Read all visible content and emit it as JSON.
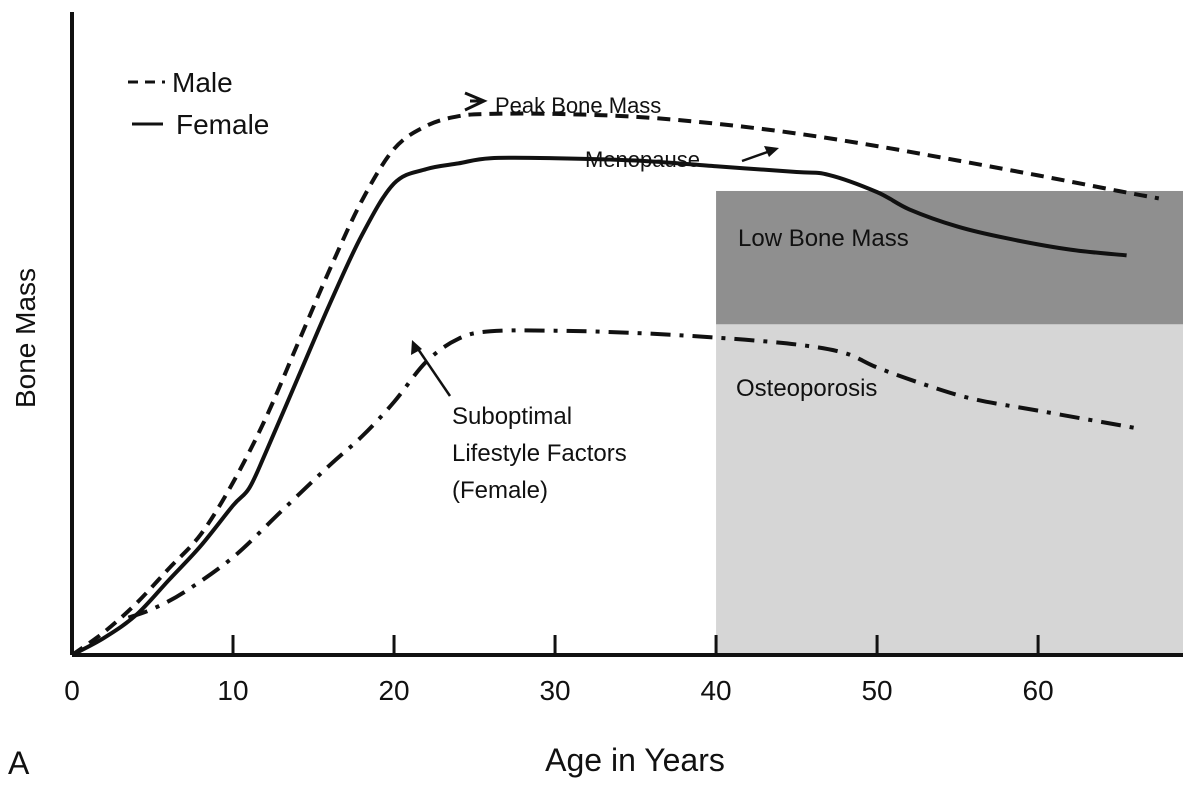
{
  "panel_label": "A",
  "chart_data": {
    "type": "line",
    "title": "",
    "xlabel": "Age in Years",
    "ylabel": "Bone Mass",
    "xlim": [
      0,
      69
    ],
    "ylim": [
      0,
      100
    ],
    "x_ticks": [
      0,
      10,
      20,
      30,
      40,
      50,
      60
    ],
    "y_ticks": [],
    "grid": false,
    "legend_position": "top-left",
    "series": [
      {
        "name": "Male",
        "style": "dashed",
        "color": "#111111",
        "points": [
          [
            0,
            0
          ],
          [
            2,
            4
          ],
          [
            4,
            9
          ],
          [
            6,
            15
          ],
          [
            8,
            21
          ],
          [
            10,
            30
          ],
          [
            12,
            41
          ],
          [
            14,
            54
          ],
          [
            16,
            67
          ],
          [
            18,
            79
          ],
          [
            20,
            88
          ],
          [
            22,
            92
          ],
          [
            24,
            93.7
          ],
          [
            26,
            94.1
          ],
          [
            30,
            94.1
          ],
          [
            35,
            93.6
          ],
          [
            40,
            92.4
          ],
          [
            45,
            90.7
          ],
          [
            50,
            88.5
          ],
          [
            55,
            86
          ],
          [
            60,
            83.4
          ],
          [
            65,
            80.7
          ],
          [
            67.5,
            79.4
          ]
        ]
      },
      {
        "name": "Female",
        "style": "solid",
        "color": "#111111",
        "points": [
          [
            0,
            0
          ],
          [
            2,
            3
          ],
          [
            4,
            7
          ],
          [
            6,
            13
          ],
          [
            8,
            19
          ],
          [
            10,
            26
          ],
          [
            11,
            29
          ],
          [
            12,
            35
          ],
          [
            14,
            48
          ],
          [
            16,
            61
          ],
          [
            18,
            73
          ],
          [
            20,
            82
          ],
          [
            22,
            84.5
          ],
          [
            24,
            85.5
          ],
          [
            26,
            86.4
          ],
          [
            30,
            86.4
          ],
          [
            35,
            86
          ],
          [
            40,
            85
          ],
          [
            45,
            84
          ],
          [
            47,
            83.5
          ],
          [
            50,
            80.5
          ],
          [
            52,
            77.5
          ],
          [
            55,
            74.5
          ],
          [
            58,
            72.5
          ],
          [
            62,
            70.5
          ],
          [
            65.5,
            69.5
          ]
        ]
      },
      {
        "name": "Suboptimal Lifestyle Factors (Female)",
        "style": "dashdot",
        "color": "#111111",
        "points": [
          [
            3.5,
            6.5
          ],
          [
            5,
            8
          ],
          [
            7,
            11
          ],
          [
            10,
            17
          ],
          [
            13,
            25
          ],
          [
            16,
            33
          ],
          [
            18,
            38
          ],
          [
            20,
            44
          ],
          [
            22,
            51
          ],
          [
            24,
            55
          ],
          [
            26,
            56.3
          ],
          [
            30,
            56.4
          ],
          [
            35,
            56
          ],
          [
            40,
            55.2
          ],
          [
            45,
            54
          ],
          [
            48,
            52.5
          ],
          [
            50,
            50
          ],
          [
            53,
            47
          ],
          [
            56,
            44.5
          ],
          [
            60,
            42.5
          ],
          [
            64,
            40.5
          ],
          [
            66,
            39.5
          ]
        ]
      }
    ],
    "regions": [
      {
        "label": "Low Bone Mass",
        "x_range": [
          40,
          69
        ],
        "y_range": [
          57.5,
          80.7
        ],
        "color": "#8f8f8f"
      },
      {
        "label": "Osteoporosis",
        "x_range": [
          40,
          69
        ],
        "y_range": [
          0,
          57.5
        ],
        "color": "#d6d6d6"
      }
    ],
    "annotations": [
      {
        "text": "Peak Bone Mass",
        "points_to": [
          24.5,
          91
        ]
      },
      {
        "text": "Menopause",
        "points_to": [
          45,
          84
        ]
      },
      {
        "text": "Suboptimal Lifestyle Factors (Female)",
        "points_to": [
          21.5,
          49.5
        ]
      }
    ]
  }
}
